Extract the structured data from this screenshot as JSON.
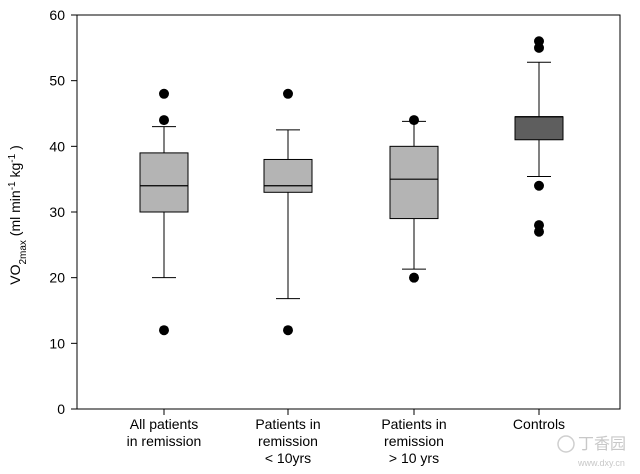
{
  "chart_data": {
    "type": "box",
    "title": "",
    "ylabel": {
      "base": "VO",
      "subscript": "2max",
      "unit_prefix": " (ml min",
      "unit_exp1": "-1",
      "unit_mid": " kg",
      "unit_exp2": "-1",
      "unit_suffix": " )"
    },
    "ylim": [
      0,
      60
    ],
    "yticks": [
      0,
      10,
      20,
      30,
      40,
      50,
      60
    ],
    "categories": [
      [
        "All patients",
        "in remission"
      ],
      [
        "Patients in",
        "remission",
        "< 10yrs"
      ],
      [
        "Patients in",
        "remission",
        "> 10 yrs"
      ],
      [
        "Controls"
      ]
    ],
    "boxes": [
      {
        "whisker_low": 20,
        "q1": 30,
        "median": 34,
        "q3": 39,
        "whisker_high": 43,
        "outliers": [
          12,
          44,
          48
        ],
        "fill": "#b4b4b4"
      },
      {
        "whisker_low": 16.8,
        "q1": 33,
        "median": 34,
        "q3": 38,
        "whisker_high": 42.5,
        "outliers": [
          12,
          48
        ],
        "fill": "#b4b4b4"
      },
      {
        "whisker_low": 21.3,
        "q1": 29,
        "median": 35,
        "q3": 40,
        "whisker_high": 43.8,
        "outliers": [
          20,
          44
        ],
        "fill": "#b4b4b4"
      },
      {
        "whisker_low": 35.4,
        "q1": 41,
        "median": 44.5,
        "q3": 44.5,
        "whisker_high": 52.8,
        "outliers": [
          27,
          28,
          34,
          55,
          56
        ],
        "fill": "#5e5e5e"
      }
    ],
    "grid": false,
    "legend": "none"
  },
  "watermark": {
    "logo_text": "丁香园",
    "url_text": "www.dxy.cn"
  }
}
